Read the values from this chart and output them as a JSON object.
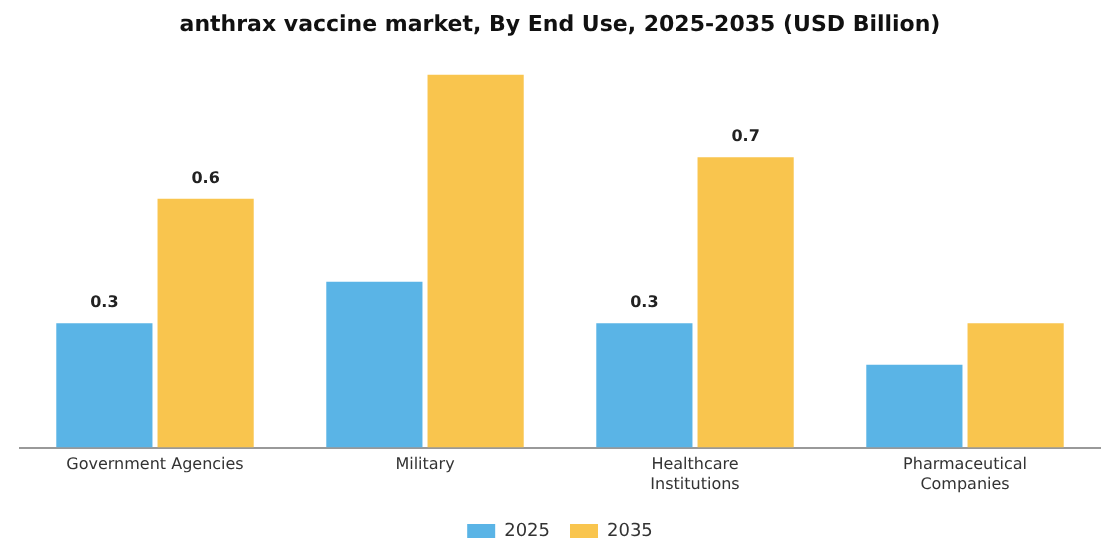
{
  "chart_data": {
    "type": "bar",
    "title": "anthrax vaccine market, By End Use, 2025-2035 (USD Billion)",
    "categories": [
      "Government Agencies",
      "Military",
      "Healthcare Institutions",
      "Pharmaceutical Companies"
    ],
    "series": [
      {
        "name": "2025",
        "color": "#5ab4e6",
        "values": [
          0.3,
          0.4,
          0.3,
          0.2
        ],
        "value_labels": [
          "0.3",
          null,
          "0.3",
          null
        ]
      },
      {
        "name": "2035",
        "color": "#f9c54e",
        "values": [
          0.6,
          0.9,
          0.7,
          0.3
        ],
        "value_labels": [
          "0.6",
          null,
          "0.7",
          null
        ]
      }
    ],
    "legend": "bottom",
    "grid": false,
    "tick_labels": "x"
  }
}
